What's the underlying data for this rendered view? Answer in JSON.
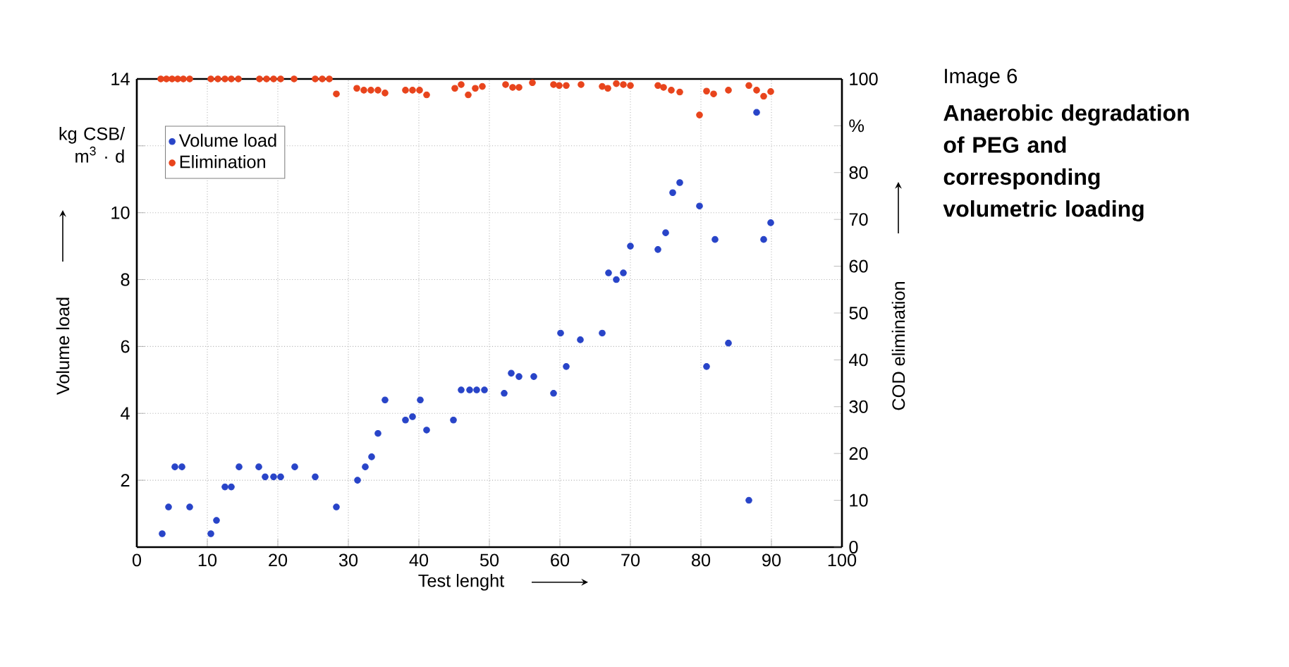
{
  "chart_data": {
    "type": "scatter",
    "title": "Anaerobic degradation of PEG and corresponding volumetric loading",
    "xlabel": "Test lenght",
    "ylabel": "Volume load",
    "y2label": "COD elimination",
    "annotations": [
      "Image 6",
      "kg CSB/ m$^{3}$ · d"
    ],
    "xlim": [
      0,
      100
    ],
    "xticks": [
      0,
      10,
      20,
      30,
      40,
      50,
      60,
      70,
      80,
      90,
      100
    ],
    "ylim": [
      0,
      14
    ],
    "yticks": [
      2,
      4,
      6,
      8,
      10,
      {
        "value": 12,
        "label": null
      },
      14
    ],
    "y2lim": [
      0,
      100
    ],
    "y2ticks": [
      0,
      10,
      20,
      30,
      40,
      50,
      60,
      70,
      80,
      {
        "value": 90,
        "label": "%"
      },
      100
    ],
    "grid": true,
    "legend": "top left",
    "marker": "circle",
    "series": [
      {
        "name": "Volume load",
        "color": "#2844c8",
        "x": [
          3.6,
          4.5,
          5.4,
          6.4,
          7.5,
          10.5,
          11.3,
          12.5,
          13.4,
          14.5,
          17.3,
          18.2,
          19.4,
          20.4,
          22.4,
          25.3,
          28.3,
          31.3,
          32.4,
          33.3,
          34.2,
          35.2,
          38.1,
          39.1,
          40.2,
          41.1,
          44.9,
          46.0,
          47.2,
          48.2,
          49.3,
          52.1,
          53.1,
          54.2,
          56.3,
          59.1,
          60.1,
          60.9,
          62.9,
          66.0,
          66.9,
          68.0,
          69.0,
          70.0,
          73.9,
          75.0,
          76.0,
          77.0,
          79.8,
          80.8,
          82.0,
          83.9,
          86.8,
          87.9,
          88.9,
          89.9
        ],
        "values": [
          0.4,
          1.2,
          2.4,
          2.4,
          1.2,
          0.4,
          0.8,
          1.8,
          1.8,
          2.4,
          2.4,
          2.1,
          2.1,
          2.1,
          2.4,
          2.1,
          1.2,
          2.0,
          2.4,
          2.7,
          3.4,
          4.4,
          3.8,
          3.9,
          4.4,
          3.5,
          3.8,
          4.7,
          4.7,
          4.7,
          4.7,
          4.6,
          5.2,
          5.1,
          5.1,
          4.6,
          6.4,
          5.4,
          6.2,
          6.4,
          8.2,
          8.0,
          8.2,
          9.0,
          8.9,
          9.4,
          10.6,
          10.9,
          10.2,
          5.4,
          9.2,
          6.1,
          1.4,
          13.0,
          9.2,
          9.7
        ]
      },
      {
        "name": "Elimination",
        "color": "#e8441c",
        "axis": "y2",
        "x": [
          3.4,
          4.2,
          5.0,
          5.8,
          6.6,
          7.5,
          10.5,
          11.5,
          12.5,
          13.4,
          14.4,
          17.4,
          18.4,
          19.4,
          20.4,
          22.3,
          25.3,
          26.3,
          27.3,
          28.3,
          31.2,
          32.2,
          33.2,
          34.2,
          35.2,
          38.1,
          39.1,
          40.1,
          41.1,
          45.1,
          46.0,
          47.0,
          48.0,
          49.0,
          52.3,
          53.3,
          54.2,
          56.1,
          59.1,
          59.9,
          60.9,
          63.0,
          66.0,
          66.8,
          68.0,
          69.0,
          70.0,
          73.9,
          74.7,
          75.8,
          77.0,
          79.8,
          80.8,
          81.8,
          83.9,
          86.8,
          87.9,
          88.9,
          89.9
        ],
        "values": [
          100,
          100,
          100,
          100,
          100,
          100,
          100,
          100,
          100,
          100,
          100,
          100,
          100,
          100,
          100,
          100,
          100,
          100,
          100,
          96.8,
          98.0,
          97.6,
          97.6,
          97.6,
          97.0,
          97.6,
          97.6,
          97.6,
          96.6,
          98.0,
          98.8,
          96.6,
          98.0,
          98.4,
          98.8,
          98.2,
          98.2,
          99.2,
          98.8,
          98.6,
          98.6,
          98.8,
          98.4,
          98.0,
          99.0,
          98.8,
          98.6,
          98.6,
          98.2,
          97.6,
          97.2,
          92.3,
          97.4,
          96.8,
          97.6,
          98.6,
          97.6,
          96.3,
          97.3
        ]
      }
    ]
  }
}
